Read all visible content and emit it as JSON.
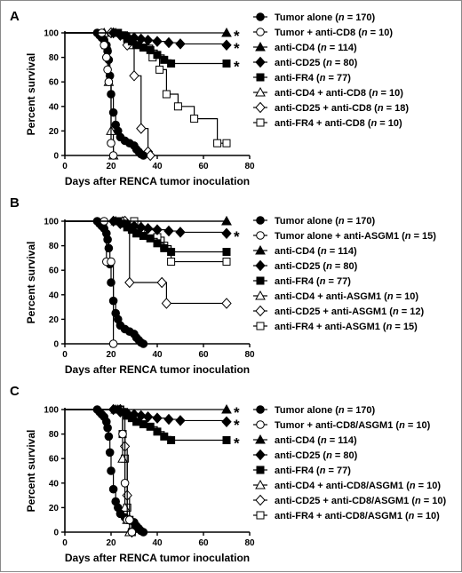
{
  "chart_data": [
    {
      "panel": "A",
      "type": "line",
      "xlabel": "Days after RENCA tumor inoculation",
      "ylabel": "Percent survival",
      "xlim": [
        0,
        80
      ],
      "ylim": [
        0,
        100
      ],
      "xticks": [
        "0",
        "20",
        "40",
        "60",
        "80"
      ],
      "yticks": [
        "0",
        "20",
        "40",
        "60",
        "80",
        "100"
      ],
      "legend_position": "right",
      "series": [
        {
          "name": "Tumor alone",
          "name_n": "(n = 170)",
          "marker": "circle-filled",
          "star": false,
          "x": [
            0,
            14,
            15,
            16,
            17,
            18,
            18.5,
            19,
            19.5,
            20,
            21,
            22,
            23,
            24,
            26,
            28,
            30,
            31,
            32,
            33,
            34
          ],
          "y": [
            100,
            100,
            98,
            96,
            94,
            90,
            85,
            78,
            65,
            50,
            35,
            25,
            20,
            15,
            12,
            10,
            8,
            5,
            3,
            1,
            0
          ]
        },
        {
          "name": "Tumor + anti-CD8",
          "name_n": "(n = 10)",
          "marker": "circle-open",
          "star": false,
          "x": [
            0,
            16,
            17,
            18,
            18.5,
            19,
            20,
            21
          ],
          "y": [
            100,
            100,
            90,
            80,
            70,
            60,
            10,
            0
          ]
        },
        {
          "name": "anti-CD4",
          "name_n": "(n = 114)",
          "marker": "triangle-filled",
          "star": true,
          "x": [
            0,
            22,
            70
          ],
          "y": [
            100,
            100,
            100
          ]
        },
        {
          "name": "anti-CD25",
          "name_n": "(n = 80)",
          "marker": "diamond-filled",
          "star": true,
          "x": [
            0,
            21,
            24,
            27,
            30,
            33,
            36,
            40,
            45,
            50,
            70
          ],
          "y": [
            100,
            100,
            98,
            97,
            96,
            95,
            94,
            93,
            92,
            91,
            90
          ]
        },
        {
          "name": "anti-FR4",
          "name_n": "(n = 77)",
          "marker": "square-filled",
          "star": true,
          "x": [
            0,
            23,
            25,
            27,
            29,
            31,
            34,
            37,
            40,
            43,
            46,
            70
          ],
          "y": [
            100,
            100,
            98,
            95,
            93,
            90,
            88,
            86,
            82,
            78,
            75,
            75
          ]
        },
        {
          "name": "anti-CD4 + anti-CD8",
          "name_n": "(n = 10)",
          "marker": "triangle-open",
          "star": false,
          "x": [
            0,
            17,
            18,
            19,
            20,
            21
          ],
          "y": [
            100,
            100,
            90,
            60,
            20,
            0
          ]
        },
        {
          "name": "anti-CD25 + anti-CD8",
          "name_n": "(n = 18)",
          "marker": "diamond-open",
          "star": false,
          "x": [
            0,
            20,
            27,
            30,
            33,
            36,
            37
          ],
          "y": [
            100,
            100,
            90,
            65,
            22,
            3,
            0
          ]
        },
        {
          "name": "anti-FR4 + anti-CD8",
          "name_n": "(n = 10)",
          "marker": "square-open",
          "star": false,
          "x": [
            0,
            21,
            28,
            38,
            41,
            44,
            49,
            56,
            66,
            70
          ],
          "y": [
            100,
            100,
            90,
            80,
            70,
            50,
            40,
            30,
            10,
            10
          ]
        }
      ]
    },
    {
      "panel": "B",
      "type": "line",
      "xlabel": "Days after RENCA tumor inoculation",
      "ylabel": "Percent survival",
      "xlim": [
        0,
        80
      ],
      "ylim": [
        0,
        100
      ],
      "xticks": [
        "0",
        "20",
        "40",
        "60",
        "80"
      ],
      "yticks": [
        "0",
        "20",
        "40",
        "60",
        "80",
        "100"
      ],
      "legend_position": "right",
      "series": [
        {
          "name": "Tumor alone",
          "name_n": "(n = 170)",
          "marker": "circle-filled",
          "star": false,
          "x": [
            0,
            14,
            15,
            16,
            17,
            18,
            18.5,
            19,
            19.5,
            20,
            21,
            22,
            23,
            24,
            26,
            28,
            30,
            31,
            32,
            33,
            34
          ],
          "y": [
            100,
            100,
            98,
            96,
            94,
            90,
            85,
            78,
            65,
            50,
            35,
            25,
            20,
            15,
            12,
            10,
            8,
            5,
            3,
            1,
            0
          ]
        },
        {
          "name": "Tumor alone + anti-ASGM1",
          "name_n": "(n = 15)",
          "marker": "circle-open",
          "star": false,
          "x": [
            0,
            17,
            18,
            20,
            21
          ],
          "y": [
            100,
            100,
            67,
            67,
            0
          ]
        },
        {
          "name": "anti-CD4",
          "name_n": "(n = 114)",
          "marker": "triangle-filled",
          "star": false,
          "x": [
            0,
            22,
            70
          ],
          "y": [
            100,
            100,
            100
          ]
        },
        {
          "name": "anti-CD25",
          "name_n": "(n = 80)",
          "marker": "diamond-filled",
          "star": true,
          "x": [
            0,
            21,
            24,
            27,
            30,
            33,
            36,
            40,
            45,
            50,
            70
          ],
          "y": [
            100,
            100,
            98,
            97,
            96,
            95,
            94,
            93,
            92,
            91,
            90
          ]
        },
        {
          "name": "anti-FR4",
          "name_n": "(n = 77)",
          "marker": "square-filled",
          "star": false,
          "x": [
            0,
            23,
            25,
            27,
            29,
            31,
            34,
            37,
            40,
            43,
            46,
            70
          ],
          "y": [
            100,
            100,
            98,
            95,
            93,
            90,
            88,
            86,
            82,
            78,
            75,
            75
          ]
        },
        {
          "name": "anti-CD4 + anti-ASGM1",
          "name_n": "(n = 10)",
          "marker": "triangle-open",
          "star": false,
          "x": [
            0,
            25,
            70
          ],
          "y": [
            100,
            100,
            100
          ]
        },
        {
          "name": "anti-CD25 + anti-ASGM1",
          "name_n": "(n = 12)",
          "marker": "diamond-open",
          "star": false,
          "x": [
            0,
            26,
            28,
            42,
            44,
            70
          ],
          "y": [
            100,
            100,
            50,
            50,
            33,
            33
          ]
        },
        {
          "name": "anti-FR4 + anti-ASGM1",
          "name_n": "(n = 15)",
          "marker": "square-open",
          "star": false,
          "x": [
            0,
            30,
            33,
            40,
            43,
            46,
            70
          ],
          "y": [
            100,
            100,
            93,
            87,
            80,
            67,
            67
          ]
        }
      ]
    },
    {
      "panel": "C",
      "type": "line",
      "xlabel": "Days after RENCA tumor inoculation",
      "ylabel": "Percent survival",
      "xlim": [
        0,
        80
      ],
      "ylim": [
        0,
        100
      ],
      "xticks": [
        "0",
        "20",
        "40",
        "60",
        "80"
      ],
      "yticks": [
        "0",
        "20",
        "40",
        "60",
        "80",
        "100"
      ],
      "legend_position": "right",
      "series": [
        {
          "name": "Tumor alone",
          "name_n": "(n = 170)",
          "marker": "circle-filled",
          "star": false,
          "x": [
            0,
            14,
            15,
            16,
            17,
            18,
            18.5,
            19,
            19.5,
            20,
            21,
            22,
            23,
            24,
            26,
            28,
            30,
            31,
            32,
            33,
            34
          ],
          "y": [
            100,
            100,
            98,
            96,
            94,
            90,
            85,
            78,
            65,
            50,
            35,
            25,
            20,
            15,
            12,
            10,
            8,
            5,
            3,
            1,
            0
          ]
        },
        {
          "name": "Tumor + anti-CD8/ASGM1",
          "name_n": "(n = 10)",
          "marker": "circle-open",
          "star": false,
          "x": [
            0,
            24,
            25,
            26,
            27,
            28,
            29
          ],
          "y": [
            100,
            100,
            80,
            40,
            10,
            10,
            0
          ]
        },
        {
          "name": "anti-CD4",
          "name_n": "(n = 114)",
          "marker": "triangle-filled",
          "star": true,
          "x": [
            0,
            22,
            70
          ],
          "y": [
            100,
            100,
            100
          ]
        },
        {
          "name": "anti-CD25",
          "name_n": "(n = 80)",
          "marker": "diamond-filled",
          "star": true,
          "x": [
            0,
            21,
            24,
            27,
            30,
            33,
            36,
            40,
            45,
            50,
            70
          ],
          "y": [
            100,
            100,
            98,
            97,
            96,
            95,
            94,
            93,
            92,
            91,
            90
          ]
        },
        {
          "name": "anti-FR4",
          "name_n": "(n = 77)",
          "marker": "square-filled",
          "star": true,
          "x": [
            0,
            23,
            25,
            27,
            29,
            31,
            34,
            37,
            40,
            43,
            46,
            70
          ],
          "y": [
            100,
            100,
            98,
            95,
            93,
            90,
            88,
            86,
            82,
            78,
            75,
            75
          ]
        },
        {
          "name": "anti-CD4 + anti-CD8/ASGM1",
          "name_n": "(n = 10)",
          "marker": "triangle-open",
          "star": false,
          "x": [
            0,
            23,
            25,
            26,
            27,
            28
          ],
          "y": [
            100,
            100,
            60,
            20,
            10,
            0
          ]
        },
        {
          "name": "anti-CD25 + anti-CD8/ASGM1",
          "name_n": "(n = 10)",
          "marker": "diamond-open",
          "star": false,
          "x": [
            0,
            24,
            26,
            27,
            28,
            29
          ],
          "y": [
            100,
            100,
            70,
            30,
            10,
            0
          ]
        },
        {
          "name": "anti-FR4 + anti-CD8/ASGM1",
          "name_n": "(n = 10)",
          "marker": "square-open",
          "star": false,
          "x": [
            0,
            24,
            25,
            26,
            27,
            28,
            29
          ],
          "y": [
            100,
            100,
            80,
            60,
            20,
            10,
            0
          ]
        }
      ]
    }
  ],
  "significance_mark": "*"
}
